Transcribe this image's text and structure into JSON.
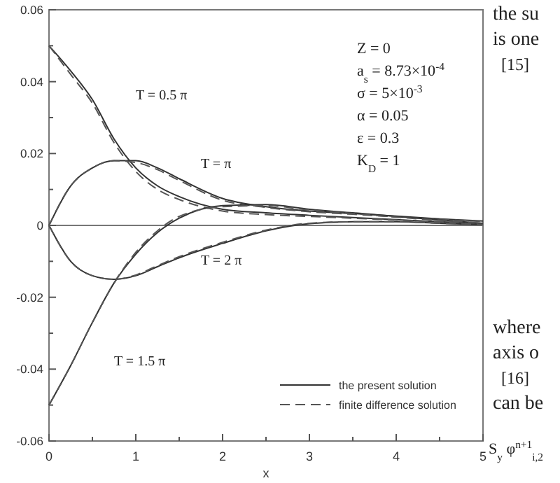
{
  "chart_data": {
    "type": "line",
    "xlabel": "x",
    "xlim": [
      0,
      5
    ],
    "ylim": [
      -0.06,
      0.06
    ],
    "xticks": [
      0,
      {
        "value": 0.5,
        "label": null
      },
      1,
      {
        "value": 1.5,
        "label": null
      },
      2,
      {
        "value": 2.5,
        "label": null
      },
      3,
      {
        "value": 3.5,
        "label": null
      },
      4,
      {
        "value": 4.5,
        "label": null
      },
      5
    ],
    "yticks": [
      -0.06,
      {
        "value": -0.05,
        "label": null
      },
      -0.04,
      {
        "value": -0.03,
        "label": null
      },
      -0.02,
      {
        "value": -0.01,
        "label": null
      },
      0,
      {
        "value": 0.01,
        "label": null
      },
      0.02,
      {
        "value": 0.03,
        "label": null
      },
      0.04,
      {
        "value": 0.05,
        "label": null
      },
      0.06
    ],
    "x": [
      0,
      0.25,
      0.5,
      0.75,
      1,
      1.25,
      1.5,
      2,
      2.5,
      3,
      3.5,
      4,
      4.5,
      5
    ],
    "series": [
      {
        "name": "the present solution",
        "color": "#333333",
        "line_style": "solid",
        "values": [
          0.05,
          0.043,
          0.035,
          0.024,
          0.016,
          0.011,
          0.008,
          0.0045,
          0.0035,
          0.0028,
          0.0022,
          0.0016,
          0.001,
          0.0005
        ]
      },
      {
        "name": "finite difference solution",
        "color": "#555555",
        "line_style": "dashed",
        "values": [
          0.05,
          0.042,
          0.034,
          0.023,
          0.015,
          0.01,
          0.0072,
          0.004,
          0.003,
          0.0025,
          0.002,
          0.0015,
          0.001,
          0.0005
        ]
      },
      {
        "color": "#333333",
        "line_style": "solid",
        "values": [
          0,
          0.011,
          0.016,
          0.018,
          0.018,
          0.016,
          0.013,
          0.0075,
          0.0052,
          0.004,
          0.0033,
          0.0026,
          0.0018,
          0.0012
        ]
      },
      {
        "color": "#555555",
        "line_style": "dashed",
        "values": [
          0,
          0.011,
          0.016,
          0.018,
          0.0175,
          0.0155,
          0.0125,
          0.007,
          0.005,
          0.0038,
          0.0031,
          0.0024,
          0.0017,
          0.0011
        ]
      },
      {
        "color": "#333333",
        "line_style": "solid",
        "values": [
          -0.05,
          -0.039,
          -0.027,
          -0.016,
          -0.008,
          -0.002,
          0.002,
          0.0055,
          0.0058,
          0.0045,
          0.0035,
          0.0025,
          0.0015,
          0.0006
        ]
      },
      {
        "color": "#555555",
        "line_style": "dashed",
        "values": [
          -0.05,
          -0.039,
          -0.027,
          -0.016,
          -0.0075,
          -0.0015,
          0.0025,
          0.0052,
          0.0055,
          0.0043,
          0.0033,
          0.0023,
          0.0014,
          0.0006
        ]
      },
      {
        "color": "#333333",
        "line_style": "solid",
        "values": [
          0,
          -0.01,
          -0.014,
          -0.015,
          -0.014,
          -0.0115,
          -0.009,
          -0.005,
          -0.0015,
          0.0005,
          0.001,
          0.001,
          0.0006,
          0.0002
        ]
      },
      {
        "color": "#555555",
        "line_style": "dashed",
        "values": [
          0,
          -0.01,
          -0.014,
          -0.015,
          -0.0138,
          -0.0112,
          -0.0087,
          -0.0047,
          -0.0013,
          0.0006,
          0.001,
          0.001,
          0.0006,
          0.0003
        ]
      }
    ],
    "legend": "bottom right",
    "ref_lines": [
      {
        "axis": "y",
        "value": 0
      }
    ],
    "annotations": [
      "T = 0.5 π",
      "T = π",
      "T = 2 π",
      "T = 1.5 π",
      "Z = 0",
      "a$_{s}$ = 8.73×10$^{-4}$",
      "σ = 5×10$^{-3}$",
      "α = 0.05",
      "ε = 0.3",
      "K$_{D}$ = 1",
      "the su",
      "is one",
      "[15]",
      "where",
      "axis o",
      "[16]",
      "can be",
      "S$_{y}$ φ$^{n+1}$$_{i,2}$"
    ]
  }
}
